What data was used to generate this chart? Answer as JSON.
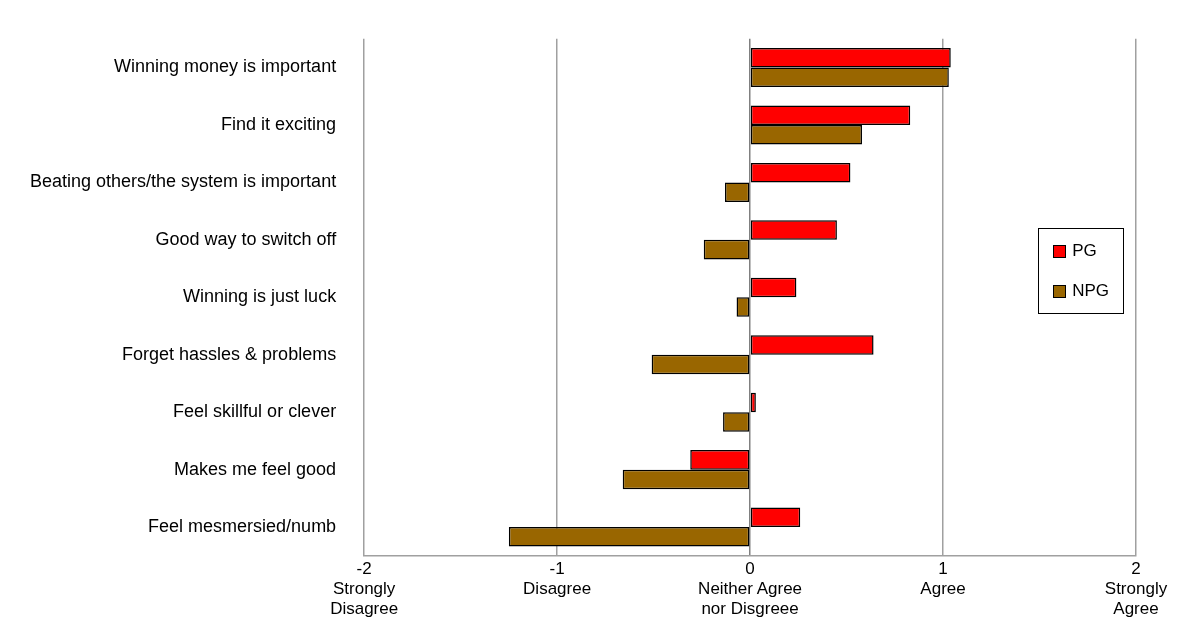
{
  "chart_data": {
    "type": "bar",
    "orientation": "horizontal",
    "categories": [
      "Winning money is important",
      "Find it exciting",
      "Beating others/the system is important",
      "Good way to switch off",
      "Winning is just luck",
      "Forget hassles & problems",
      "Feel skillful or clever",
      "Makes me feel good",
      "Feel mesmersied/numb"
    ],
    "series": [
      {
        "name": "PG",
        "color": "#ff0000",
        "values": [
          1.04,
          0.83,
          0.52,
          0.45,
          0.24,
          0.64,
          0.03,
          -0.31,
          0.26
        ]
      },
      {
        "name": "NPG",
        "color": "#996600",
        "values": [
          1.03,
          0.58,
          -0.13,
          -0.24,
          -0.07,
          -0.51,
          -0.14,
          -0.66,
          -1.25
        ]
      }
    ],
    "xlim": [
      -2,
      2
    ],
    "xticks": [
      {
        "value": -2,
        "label": "-2\nStrongly\nDisagree"
      },
      {
        "value": -1,
        "label": "-1\nDisagree"
      },
      {
        "value": 0,
        "label": "0\nNeither Agree\nnor Disgreee"
      },
      {
        "value": 1,
        "label": "1\nAgree"
      },
      {
        "value": 2,
        "label": "2\nStrongly\nAgree"
      }
    ],
    "grid": "x",
    "legend": "right"
  }
}
